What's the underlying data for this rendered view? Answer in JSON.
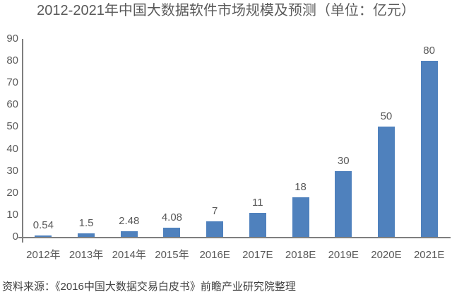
{
  "chart_data": {
    "type": "bar",
    "title": "2012-2021年中国大数据软件市场规模及预测（单位：亿元）",
    "categories": [
      "2012年",
      "2013年",
      "2014年",
      "2015年",
      "2016E",
      "2017E",
      "2018E",
      "2019E",
      "2020E",
      "2021E"
    ],
    "values": [
      0.54,
      1.5,
      2.48,
      4.08,
      7,
      11,
      18,
      30,
      50,
      80
    ],
    "data_labels": [
      "0.54",
      "1.5",
      "2.48",
      "4.08",
      "7",
      "11",
      "18",
      "30",
      "50",
      "80"
    ],
    "xlabel": "",
    "ylabel": "",
    "ylim": [
      0,
      90
    ],
    "yticks": [
      0,
      10,
      20,
      30,
      40,
      50,
      60,
      70,
      80,
      90
    ],
    "grid": false,
    "legend": false,
    "bar_color": "#4f81bd",
    "axis_color": "#7f7f7f",
    "label_color": "#595959"
  },
  "source": {
    "text": "资料来源：《2016中国大数据交易白皮书》前瞻产业研究院整理"
  }
}
